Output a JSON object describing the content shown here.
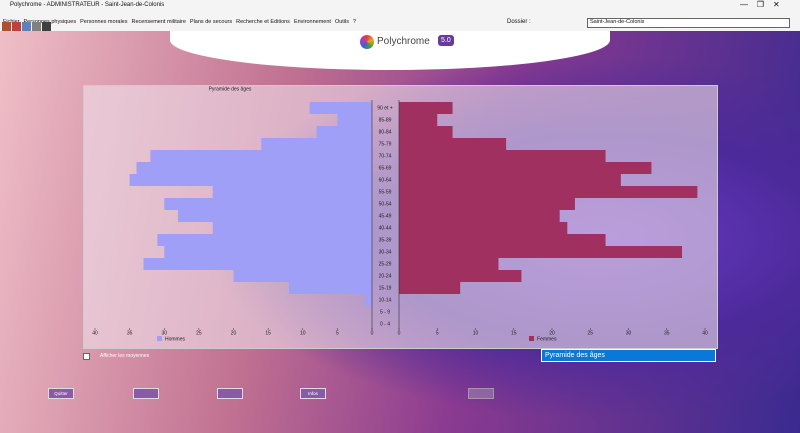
{
  "window_title": "Polychrome - ADMINISTRATEUR - Saint-Jean-de-Colonis",
  "menu": [
    "Fichier",
    "Personnes physiques",
    "Personnes morales",
    "Recensement militaire",
    "Plans de secours",
    "Recherche et Editions",
    "Environnement",
    "Outils",
    "?"
  ],
  "dossier": {
    "label": "Dossier :",
    "value": "Saint-Jean-de-Colonis"
  },
  "logo": {
    "name": "Polychrome",
    "version": "5.0"
  },
  "chart_data": {
    "type": "pyramid",
    "title": "Pyramide des âges",
    "categories": [
      "90 et +",
      "85-89",
      "80-84",
      "75-79",
      "70-74",
      "65-69",
      "60-64",
      "55-59",
      "50-54",
      "45-49",
      "40-44",
      "35-39",
      "30-34",
      "25-29",
      "20-24",
      "15-19",
      "10-14",
      "5 - 9",
      "0 - 4"
    ],
    "series": [
      {
        "name": "Hommes",
        "color": "#9f9ff7",
        "values": [
          9,
          5,
          8,
          16,
          32,
          34,
          35,
          23,
          30,
          28,
          23,
          31,
          30,
          33,
          20,
          12,
          1,
          0,
          0
        ]
      },
      {
        "name": "Femmes",
        "color": "#a0305f",
        "values": [
          7,
          5,
          7,
          14,
          27,
          33,
          29,
          39,
          23,
          21,
          22,
          27,
          37,
          13,
          16,
          8,
          0,
          0,
          0
        ]
      }
    ],
    "xlim": [
      0,
      40
    ],
    "xticks": [
      0,
      5,
      10,
      15,
      20,
      25,
      30,
      35,
      40
    ]
  },
  "checkbox": {
    "label": "Afficher les moyennes"
  },
  "select": {
    "value": "Pyramide des âges"
  },
  "buttons": [
    "Quitter",
    "Infos"
  ]
}
